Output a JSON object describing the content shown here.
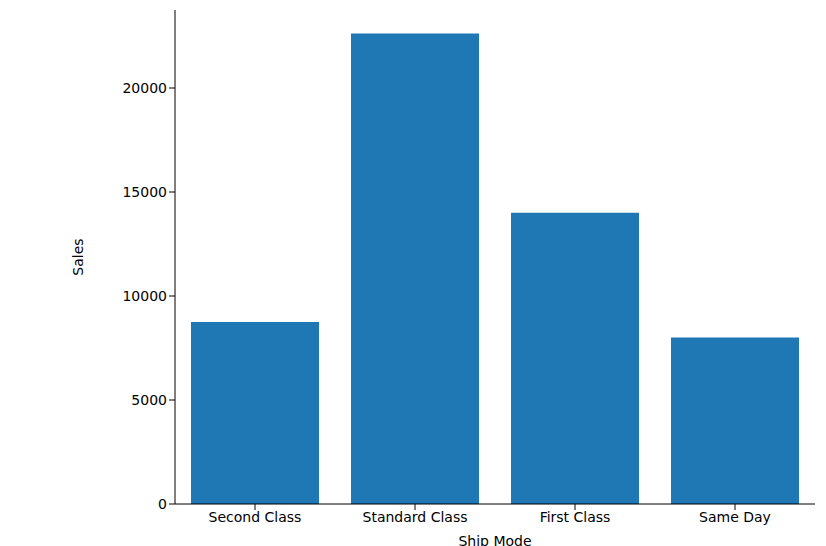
{
  "chart_data": {
    "type": "bar",
    "x_label": "Ship Mode",
    "y_label": "Sales",
    "categories": [
      "Second Class",
      "Standard Class",
      "First Class",
      "Same Day"
    ],
    "values": [
      8750,
      22620,
      14000,
      8000
    ],
    "color": "#1f77b4",
    "ylim": [
      0,
      23750
    ],
    "yticks": [
      0,
      5000,
      10000,
      15000,
      20000
    ],
    "grid": false
  }
}
